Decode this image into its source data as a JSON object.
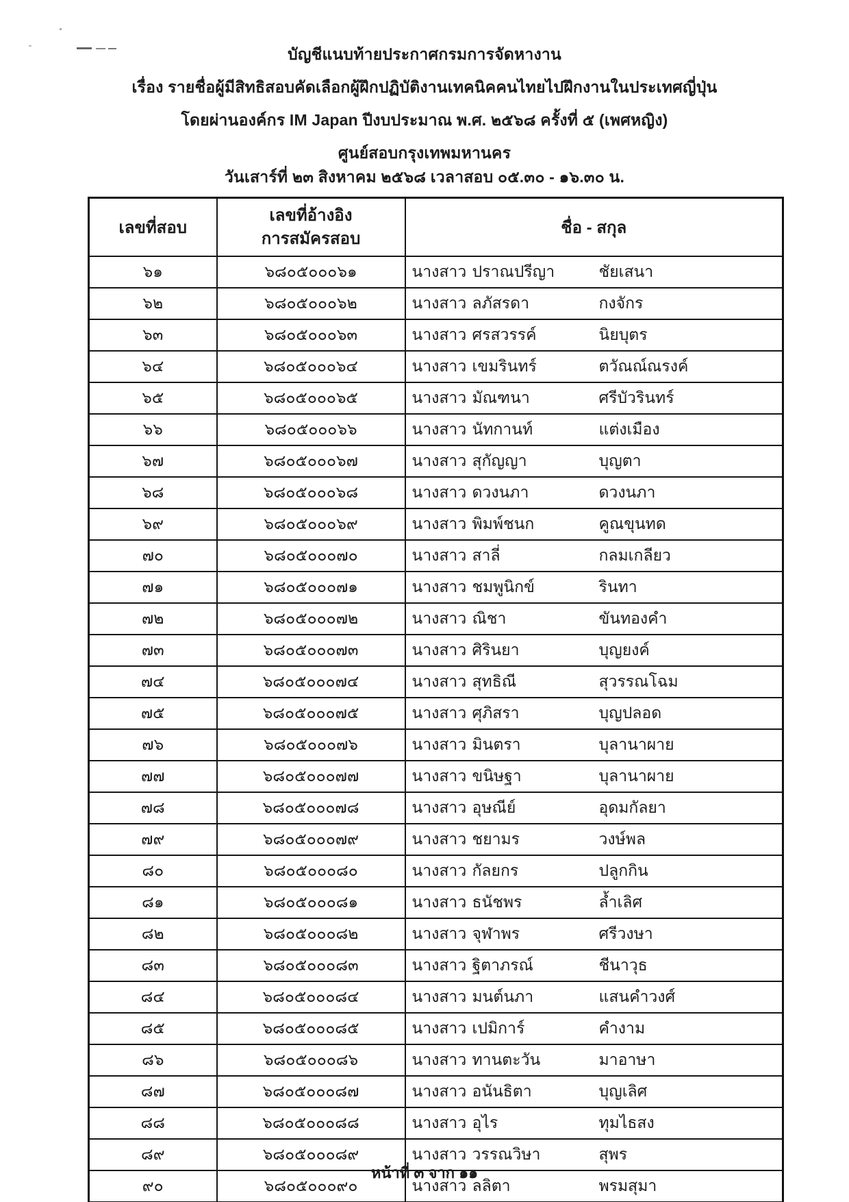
{
  "header": {
    "line1": "บัญชีแนบท้ายประกาศกรมการจัดหางาน",
    "line2": "เรื่อง รายชื่อผู้มีสิทธิสอบคัดเลือกผู้ฝึกปฏิบัติงานเทคนิคคนไทยไปฝึกงานในประเทศญี่ปุ่น",
    "line3": "โดยผ่านองค์กร IM Japan ปีงบประมาณ พ.ศ. ๒๕๖๘ ครั้งที่ ๕ (เพศหญิง)",
    "line4": "ศูนย์สอบกรุงเทพมหานคร",
    "line5": "วันเสาร์ที่ ๒๓ สิงหาคม ๒๕๖๘ เวลาสอบ ๐๕.๓๐ - ๑๖.๓๐ น."
  },
  "table": {
    "col_exam_no": "เลขที่สอบ",
    "col_ref_line1": "เลขที่อ้างอิง",
    "col_ref_line2": "การสมัครสอบ",
    "col_name": "ชื่อ - สกุล",
    "rows": [
      {
        "no": "๖๑",
        "ref": "๖๘๐๕๐๐๐๖๑",
        "title": "นางสาว",
        "first": "ปราณปรีญา",
        "last": "ชัยเสนา"
      },
      {
        "no": "๖๒",
        "ref": "๖๘๐๕๐๐๐๖๒",
        "title": "นางสาว",
        "first": "ลภัสรดา",
        "last": "กงจักร"
      },
      {
        "no": "๖๓",
        "ref": "๖๘๐๕๐๐๐๖๓",
        "title": "นางสาว",
        "first": "ศรสวรรค์",
        "last": "นิยบุตร"
      },
      {
        "no": "๖๔",
        "ref": "๖๘๐๕๐๐๐๖๔",
        "title": "นางสาว",
        "first": "เขมรินทร์",
        "last": "ตวัณณ์ณรงค์"
      },
      {
        "no": "๖๕",
        "ref": "๖๘๐๕๐๐๐๖๕",
        "title": "นางสาว",
        "first": "มัณฑนา",
        "last": "ศรีบัวรินทร์"
      },
      {
        "no": "๖๖",
        "ref": "๖๘๐๕๐๐๐๖๖",
        "title": "นางสาว",
        "first": "นัทกานท์",
        "last": "แต่งเมือง"
      },
      {
        "no": "๖๗",
        "ref": "๖๘๐๕๐๐๐๖๗",
        "title": "นางสาว",
        "first": "สุกัญญา",
        "last": "บุญตา"
      },
      {
        "no": "๖๘",
        "ref": "๖๘๐๕๐๐๐๖๘",
        "title": "นางสาว",
        "first": "ดวงนภา",
        "last": "ดวงนภา"
      },
      {
        "no": "๖๙",
        "ref": "๖๘๐๕๐๐๐๖๙",
        "title": "นางสาว",
        "first": "พิมพ์ชนก",
        "last": "คูณขุนทด"
      },
      {
        "no": "๗๐",
        "ref": "๖๘๐๕๐๐๐๗๐",
        "title": "นางสาว",
        "first": "สาลี่",
        "last": "กลมเกลียว"
      },
      {
        "no": "๗๑",
        "ref": "๖๘๐๕๐๐๐๗๑",
        "title": "นางสาว",
        "first": "ชมพูนิกข์",
        "last": "รินทา"
      },
      {
        "no": "๗๒",
        "ref": "๖๘๐๕๐๐๐๗๒",
        "title": "นางสาว",
        "first": "ณิชา",
        "last": "ขันทองคำ"
      },
      {
        "no": "๗๓",
        "ref": "๖๘๐๕๐๐๐๗๓",
        "title": "นางสาว",
        "first": "ศิรินยา",
        "last": "บุญยงค์"
      },
      {
        "no": "๗๔",
        "ref": "๖๘๐๕๐๐๐๗๔",
        "title": "นางสาว",
        "first": "สุทธิณี",
        "last": "สุวรรณโฉม"
      },
      {
        "no": "๗๕",
        "ref": "๖๘๐๕๐๐๐๗๕",
        "title": "นางสาว",
        "first": "ศุภิสรา",
        "last": "บุญปลอด"
      },
      {
        "no": "๗๖",
        "ref": "๖๘๐๕๐๐๐๗๖",
        "title": "นางสาว",
        "first": "มินตรา",
        "last": "บุลานาผาย"
      },
      {
        "no": "๗๗",
        "ref": "๖๘๐๕๐๐๐๗๗",
        "title": "นางสาว",
        "first": "ขนิษฐา",
        "last": "บุลานาผาย"
      },
      {
        "no": "๗๘",
        "ref": "๖๘๐๕๐๐๐๗๘",
        "title": "นางสาว",
        "first": "อุษณีย์",
        "last": "อุดมกัลยา"
      },
      {
        "no": "๗๙",
        "ref": "๖๘๐๕๐๐๐๗๙",
        "title": "นางสาว",
        "first": "ชยามร",
        "last": "วงษ์พล"
      },
      {
        "no": "๘๐",
        "ref": "๖๘๐๕๐๐๐๘๐",
        "title": "นางสาว",
        "first": "กัลยกร",
        "last": "ปลูกกิน"
      },
      {
        "no": "๘๑",
        "ref": "๖๘๐๕๐๐๐๘๑",
        "title": "นางสาว",
        "first": "ธนัชพร",
        "last": "ล้ำเลิศ"
      },
      {
        "no": "๘๒",
        "ref": "๖๘๐๕๐๐๐๘๒",
        "title": "นางสาว",
        "first": "จุฬาพร",
        "last": "ศรีวงษา"
      },
      {
        "no": "๘๓",
        "ref": "๖๘๐๕๐๐๐๘๓",
        "title": "นางสาว",
        "first": "ฐิตาภรณ์",
        "last": "ชีนาวุธ"
      },
      {
        "no": "๘๔",
        "ref": "๖๘๐๕๐๐๐๘๔",
        "title": "นางสาว",
        "first": "มนต์นภา",
        "last": "แสนคำวงศ์"
      },
      {
        "no": "๘๕",
        "ref": "๖๘๐๕๐๐๐๘๕",
        "title": "นางสาว",
        "first": "เปมิการ์",
        "last": "คำงาม"
      },
      {
        "no": "๘๖",
        "ref": "๖๘๐๕๐๐๐๘๖",
        "title": "นางสาว",
        "first": "ทานตะวัน",
        "last": "มาอาษา"
      },
      {
        "no": "๘๗",
        "ref": "๖๘๐๕๐๐๐๘๗",
        "title": "นางสาว",
        "first": "อนันธิตา",
        "last": "บุญเลิศ"
      },
      {
        "no": "๘๘",
        "ref": "๖๘๐๕๐๐๐๘๘",
        "title": "นางสาว",
        "first": "อุไร",
        "last": "ทุมไธสง"
      },
      {
        "no": "๘๙",
        "ref": "๖๘๐๕๐๐๐๘๙",
        "title": "นางสาว",
        "first": "วรรณวิษา",
        "last": "สุพร"
      },
      {
        "no": "๙๐",
        "ref": "๖๘๐๕๐๐๐๙๐",
        "title": "นางสาว",
        "first": "ลลิตา",
        "last": "พรมสุมา"
      }
    ]
  },
  "footer": {
    "page_indicator": "หน้าที่ ๓ จาก ๑๑"
  }
}
